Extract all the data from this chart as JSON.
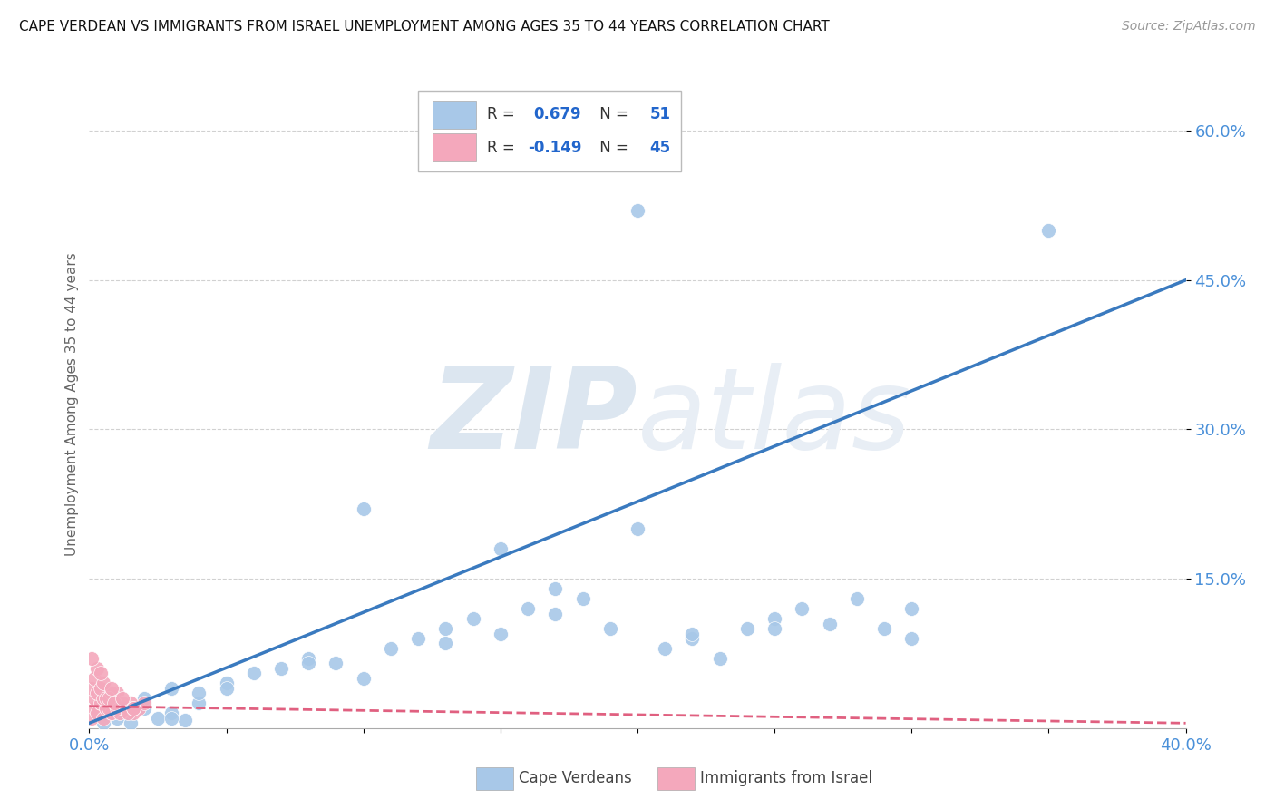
{
  "title": "CAPE VERDEAN VS IMMIGRANTS FROM ISRAEL UNEMPLOYMENT AMONG AGES 35 TO 44 YEARS CORRELATION CHART",
  "source": "Source: ZipAtlas.com",
  "ylabel": "Unemployment Among Ages 35 to 44 years",
  "legend_labels": [
    "Cape Verdeans",
    "Immigrants from Israel"
  ],
  "xlim": [
    0.0,
    0.4
  ],
  "ylim": [
    0.0,
    0.65
  ],
  "ytick_positions": [
    0.15,
    0.3,
    0.45,
    0.6
  ],
  "ytick_labels": [
    "15.0%",
    "30.0%",
    "45.0%",
    "60.0%"
  ],
  "blue_color": "#a8c8e8",
  "pink_color": "#f4a8bc",
  "blue_line_color": "#3a7abf",
  "pink_line_color": "#e06080",
  "watermark_color": "#dce6f0",
  "blue_R": 0.679,
  "pink_R": -0.149,
  "blue_N": 51,
  "pink_N": 45,
  "blue_line_x0": 0.0,
  "blue_line_y0": 0.005,
  "blue_line_x1": 0.4,
  "blue_line_y1": 0.45,
  "pink_line_x0": 0.0,
  "pink_line_y0": 0.022,
  "pink_line_x1": 0.4,
  "pink_line_y1": 0.005,
  "blue_scatter_x": [
    0.005,
    0.01,
    0.015,
    0.02,
    0.025,
    0.03,
    0.035,
    0.04,
    0.005,
    0.01,
    0.02,
    0.03,
    0.04,
    0.05,
    0.06,
    0.07,
    0.08,
    0.09,
    0.1,
    0.11,
    0.12,
    0.13,
    0.14,
    0.15,
    0.16,
    0.17,
    0.18,
    0.19,
    0.2,
    0.21,
    0.22,
    0.23,
    0.24,
    0.25,
    0.26,
    0.27,
    0.28,
    0.29,
    0.3,
    0.2,
    0.35,
    0.1,
    0.15,
    0.22,
    0.25,
    0.3,
    0.17,
    0.13,
    0.08,
    0.05,
    0.03
  ],
  "blue_scatter_y": [
    0.005,
    0.01,
    0.005,
    0.02,
    0.01,
    0.015,
    0.008,
    0.025,
    0.03,
    0.02,
    0.03,
    0.04,
    0.035,
    0.045,
    0.055,
    0.06,
    0.07,
    0.065,
    0.05,
    0.08,
    0.09,
    0.1,
    0.11,
    0.095,
    0.12,
    0.115,
    0.13,
    0.1,
    0.52,
    0.08,
    0.09,
    0.07,
    0.1,
    0.11,
    0.12,
    0.105,
    0.13,
    0.1,
    0.09,
    0.2,
    0.5,
    0.22,
    0.18,
    0.095,
    0.1,
    0.12,
    0.14,
    0.085,
    0.065,
    0.04,
    0.01
  ],
  "pink_scatter_x": [
    0.001,
    0.002,
    0.003,
    0.004,
    0.005,
    0.006,
    0.007,
    0.008,
    0.009,
    0.01,
    0.002,
    0.004,
    0.006,
    0.008,
    0.01,
    0.012,
    0.014,
    0.016,
    0.018,
    0.02,
    0.001,
    0.003,
    0.005,
    0.007,
    0.009,
    0.011,
    0.013,
    0.015,
    0.002,
    0.004,
    0.006,
    0.008,
    0.01,
    0.012,
    0.014,
    0.016,
    0.003,
    0.005,
    0.007,
    0.009,
    0.001,
    0.004,
    0.008,
    0.012,
    0.016
  ],
  "pink_scatter_y": [
    0.01,
    0.02,
    0.015,
    0.025,
    0.01,
    0.03,
    0.02,
    0.015,
    0.025,
    0.02,
    0.03,
    0.025,
    0.02,
    0.015,
    0.035,
    0.025,
    0.02,
    0.015,
    0.02,
    0.025,
    0.04,
    0.035,
    0.03,
    0.02,
    0.025,
    0.015,
    0.02,
    0.025,
    0.05,
    0.04,
    0.03,
    0.035,
    0.02,
    0.025,
    0.015,
    0.02,
    0.06,
    0.045,
    0.03,
    0.025,
    0.07,
    0.055,
    0.04,
    0.03,
    0.02
  ]
}
